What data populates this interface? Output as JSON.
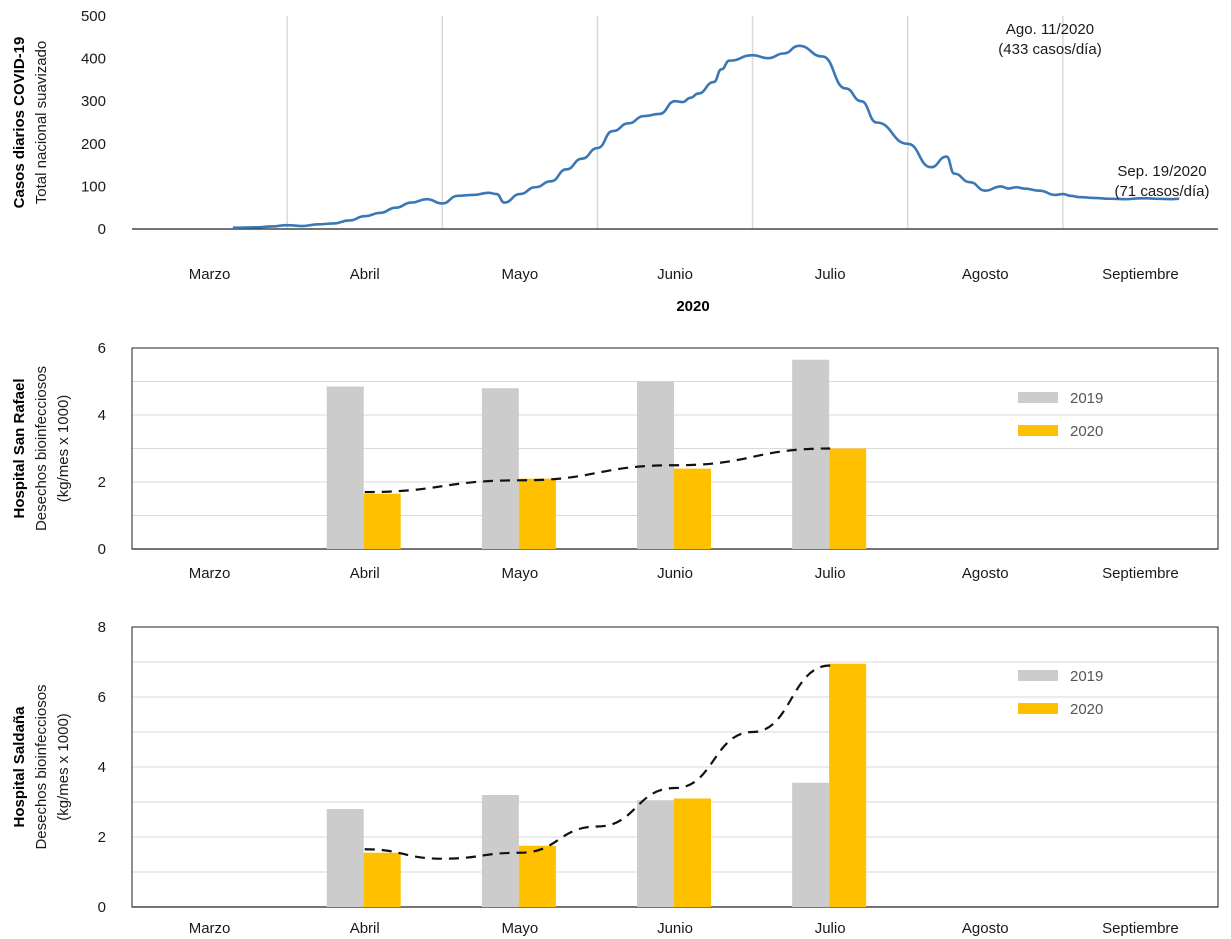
{
  "chart_data": [
    {
      "type": "line",
      "ylabel_bold": "Casos diarios COVID-19",
      "ylabel": "Total nacional suavizado",
      "xlabel": "2020",
      "categories": [
        "Marzo",
        "Abril",
        "Mayo",
        "Junio",
        "Julio",
        "Agosto",
        "Septiembre"
      ],
      "yticks": [
        0,
        100,
        200,
        300,
        400,
        500
      ],
      "ylim": [
        0,
        500
      ],
      "grid": "vertical",
      "color": "#3a78b5",
      "annotations": [
        {
          "line1": "Ago. 11/2020",
          "line2": "(433 casos/día)",
          "x": 5.3,
          "y": 433
        },
        {
          "line1": "Sep. 19/2020",
          "line2": "(71 casos/día)",
          "x": 6.75,
          "y": 71
        }
      ],
      "x": [
        0.65,
        0.8,
        0.9,
        1.0,
        1.1,
        1.2,
        1.3,
        1.4,
        1.5,
        1.6,
        1.7,
        1.8,
        1.9,
        2.0,
        2.1,
        2.2,
        2.3,
        2.35,
        2.4,
        2.5,
        2.6,
        2.7,
        2.8,
        2.9,
        3.0,
        3.1,
        3.2,
        3.3,
        3.4,
        3.5,
        3.55,
        3.6,
        3.65,
        3.75,
        3.8,
        3.85,
        4.0,
        4.1,
        4.2,
        4.3,
        4.45,
        4.6,
        4.7,
        4.8,
        5.0,
        5.15,
        5.25,
        5.3,
        5.4,
        5.5,
        5.6,
        5.65,
        5.7,
        5.75,
        5.85,
        5.95,
        6.0,
        6.05,
        6.1,
        6.2,
        6.3,
        6.4,
        6.5,
        6.55,
        6.6,
        6.7,
        6.75
      ],
      "y": [
        3,
        4,
        6,
        9,
        7,
        11,
        13,
        20,
        30,
        38,
        50,
        62,
        70,
        60,
        78,
        80,
        85,
        82,
        62,
        82,
        98,
        112,
        140,
        165,
        190,
        230,
        248,
        265,
        270,
        300,
        298,
        308,
        318,
        345,
        375,
        395,
        408,
        401,
        412,
        430,
        405,
        330,
        300,
        250,
        200,
        145,
        170,
        130,
        110,
        90,
        100,
        95,
        98,
        95,
        90,
        80,
        82,
        78,
        75,
        73,
        71,
        70,
        72,
        72,
        71,
        70,
        71
      ]
    },
    {
      "type": "bar",
      "ylabel_bold": "Hospital San Rafael",
      "ylabel": "Desechos bioinfecciosos",
      "ylabel2": "(kg/mes x 1000)",
      "categories": [
        "Marzo",
        "Abril",
        "Mayo",
        "Junio",
        "Julio",
        "Agosto",
        "Septiembre"
      ],
      "yticks": [
        0,
        2,
        4,
        6
      ],
      "ylim": [
        0,
        6
      ],
      "legend": "right",
      "series": [
        {
          "name": "2019",
          "color": "#cccccc",
          "values": [
            null,
            4.85,
            4.8,
            5.0,
            5.65,
            null,
            null
          ]
        },
        {
          "name": "2020",
          "color": "#ffc000",
          "values": [
            null,
            1.65,
            2.1,
            2.4,
            3.0,
            null,
            null
          ]
        }
      ],
      "trend": {
        "x": [
          1.0,
          2.0,
          3.0,
          4.0
        ],
        "y": [
          1.7,
          2.05,
          2.5,
          3.0
        ]
      }
    },
    {
      "type": "bar",
      "ylabel_bold": "Hospital Saldaña",
      "ylabel": "Desechos bioinfecciosos",
      "ylabel2": "(kg/mes x 1000)",
      "categories": [
        "Marzo",
        "Abril",
        "Mayo",
        "Junio",
        "Julio",
        "Agosto",
        "Septiembre"
      ],
      "yticks": [
        0,
        2,
        4,
        6,
        8
      ],
      "ylim": [
        0,
        8
      ],
      "legend": "right",
      "series": [
        {
          "name": "2019",
          "color": "#cccccc",
          "values": [
            null,
            2.8,
            3.2,
            3.05,
            3.55,
            null,
            null
          ]
        },
        {
          "name": "2020",
          "color": "#ffc000",
          "values": [
            null,
            1.55,
            1.75,
            3.1,
            6.95,
            null,
            null
          ]
        }
      ],
      "trend": {
        "x": [
          1.0,
          1.5,
          2.0,
          2.5,
          3.0,
          3.5,
          4.0
        ],
        "y": [
          1.65,
          1.38,
          1.55,
          2.3,
          3.4,
          5.0,
          6.9
        ]
      }
    }
  ]
}
